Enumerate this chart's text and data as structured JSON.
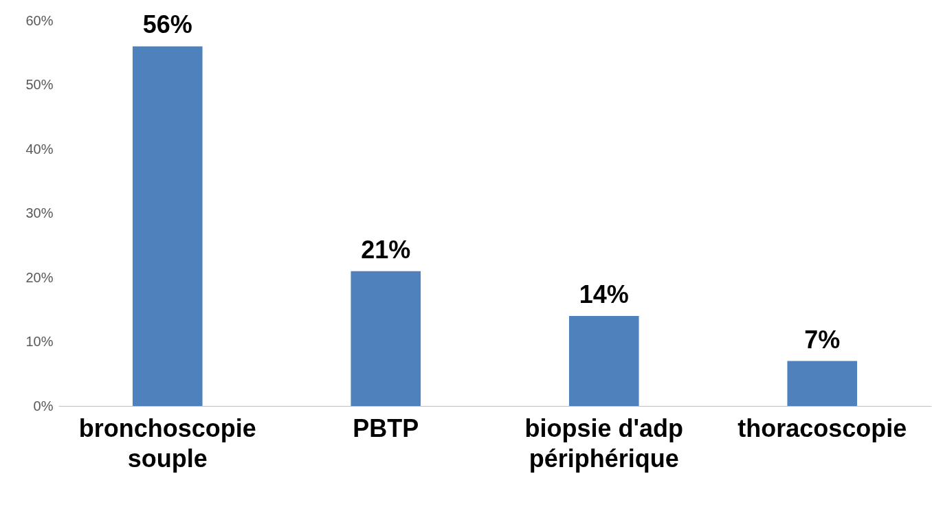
{
  "chart_data": {
    "type": "bar",
    "categories": [
      "bronchoscopie souple",
      "PBTP",
      "biopsie d'adp périphérique",
      "thoracoscopie"
    ],
    "values": [
      56,
      21,
      14,
      7
    ],
    "value_labels": [
      "56%",
      "21%",
      "14%",
      "7%"
    ],
    "color": "#4f81bd",
    "ylim": [
      0,
      60
    ],
    "yticks": [
      {
        "value": 0,
        "label": "0%"
      },
      {
        "value": 10,
        "label": "10%"
      },
      {
        "value": 20,
        "label": "20%"
      },
      {
        "value": 30,
        "label": "30%"
      },
      {
        "value": 40,
        "label": "40%"
      },
      {
        "value": 50,
        "label": "50%"
      },
      {
        "value": 60,
        "label": "60%"
      }
    ],
    "grid": false
  }
}
